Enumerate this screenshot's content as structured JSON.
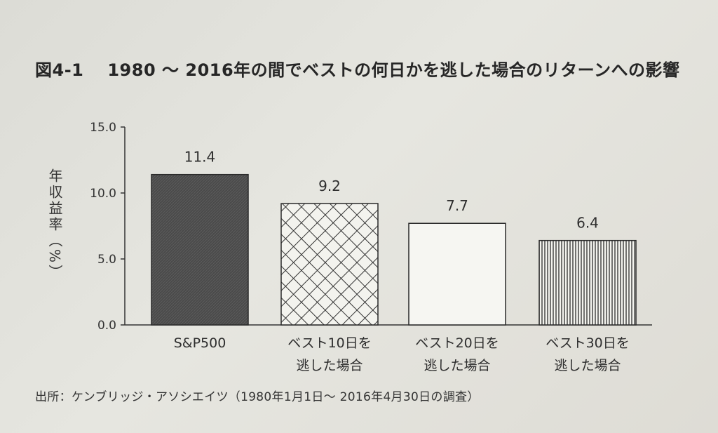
{
  "figure": {
    "number": "図4-1",
    "title": "1980 ～ 2016年の間でベストの何日かを逃した場合のリターンへの影響"
  },
  "source": "出所：ケンブリッジ・アソシエイツ（1980年1月1日～ 2016年4月30日の調査）",
  "chart_data": {
    "type": "bar",
    "categories": [
      "S&P500",
      "ベスト10日を逃した場合",
      "ベスト20日を逃した場合",
      "ベスト30日を逃した場合"
    ],
    "category_lines": [
      [
        "S&P500"
      ],
      [
        "ベスト10日を",
        "逃した場合"
      ],
      [
        "ベスト20日を",
        "逃した場合"
      ],
      [
        "ベスト30日を",
        "逃した場合"
      ]
    ],
    "values": [
      11.4,
      9.2,
      7.7,
      6.4
    ],
    "value_labels": [
      "11.4",
      "9.2",
      "7.7",
      "6.4"
    ],
    "bar_fills": [
      "dark-solid",
      "diagonal-crosshatch",
      "white",
      "vertical-stripes"
    ],
    "ylabel": "年収益率（%）",
    "xlabel": "",
    "ylim": [
      0,
      15
    ],
    "yticks": [
      0,
      5,
      10,
      15
    ],
    "ytick_labels": [
      "0.0",
      "5.0",
      "10.0",
      "15.0"
    ],
    "grid": false,
    "legend": "none"
  }
}
